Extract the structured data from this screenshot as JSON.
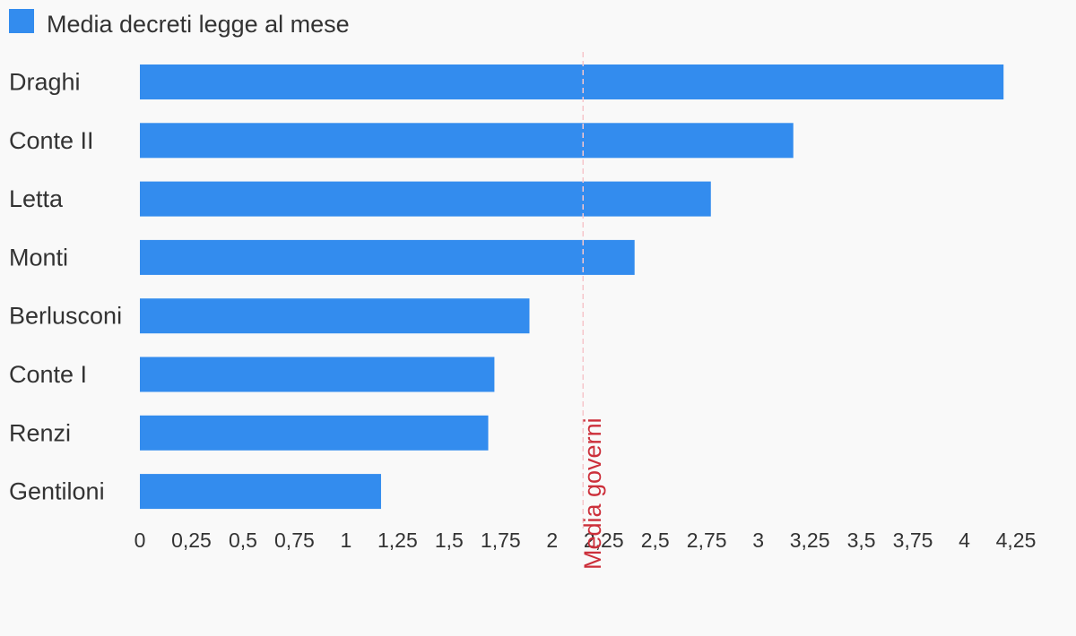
{
  "chart_data": {
    "type": "bar",
    "orientation": "horizontal",
    "series": [
      {
        "name": "Media decreti legge al mese",
        "color": "#338cee"
      }
    ],
    "categories": [
      "Draghi",
      "Conte II",
      "Letta",
      "Monti",
      "Berlusconi",
      "Conte I",
      "Renzi",
      "Gentiloni"
    ],
    "values": [
      4.19,
      3.17,
      2.77,
      2.4,
      1.89,
      1.72,
      1.69,
      1.17
    ],
    "xlim": [
      0,
      4.25
    ],
    "x_ticks": [
      "0",
      "0,25",
      "0,5",
      "0,75",
      "1",
      "1,25",
      "1,5",
      "1,75",
      "2",
      "2,25",
      "2,5",
      "2,75",
      "3",
      "3,25",
      "3,5",
      "3,75",
      "4",
      "4,25"
    ],
    "legend_position": "top-left",
    "grid": false,
    "reference_line": {
      "label": "Media governi",
      "value": 2.15,
      "color": "#cc2f3a",
      "line_color": "#f6c6cb",
      "style": "dashed"
    }
  }
}
